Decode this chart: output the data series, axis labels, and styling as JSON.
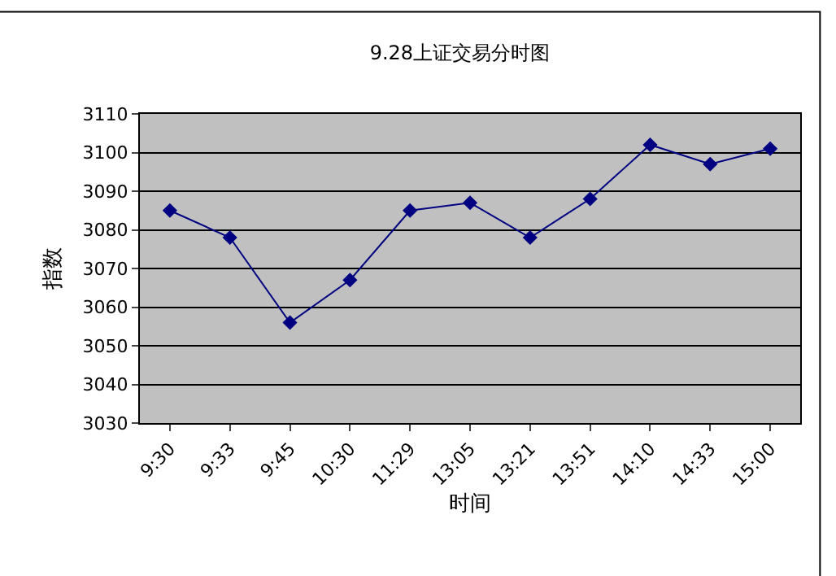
{
  "chart_data": {
    "type": "line",
    "title": "9.28上证交易分时图",
    "xlabel": "时间",
    "ylabel": "指数",
    "categories": [
      "9:30",
      "9:33",
      "9:45",
      "10:30",
      "11:29",
      "13:05",
      "13:21",
      "13:51",
      "14:10",
      "14:33",
      "15:00"
    ],
    "series": [
      {
        "color": "#000080",
        "values": [
          3085,
          3078,
          3056,
          3067,
          3085,
          3087,
          3078,
          3088,
          3102,
          3097,
          3101
        ]
      }
    ],
    "ylim": [
      3030,
      3110
    ],
    "yticks": [
      3030,
      3040,
      3050,
      3060,
      3070,
      3080,
      3090,
      3100,
      3110
    ],
    "grid": "y",
    "marker": "diamond",
    "line_style": "solid"
  }
}
